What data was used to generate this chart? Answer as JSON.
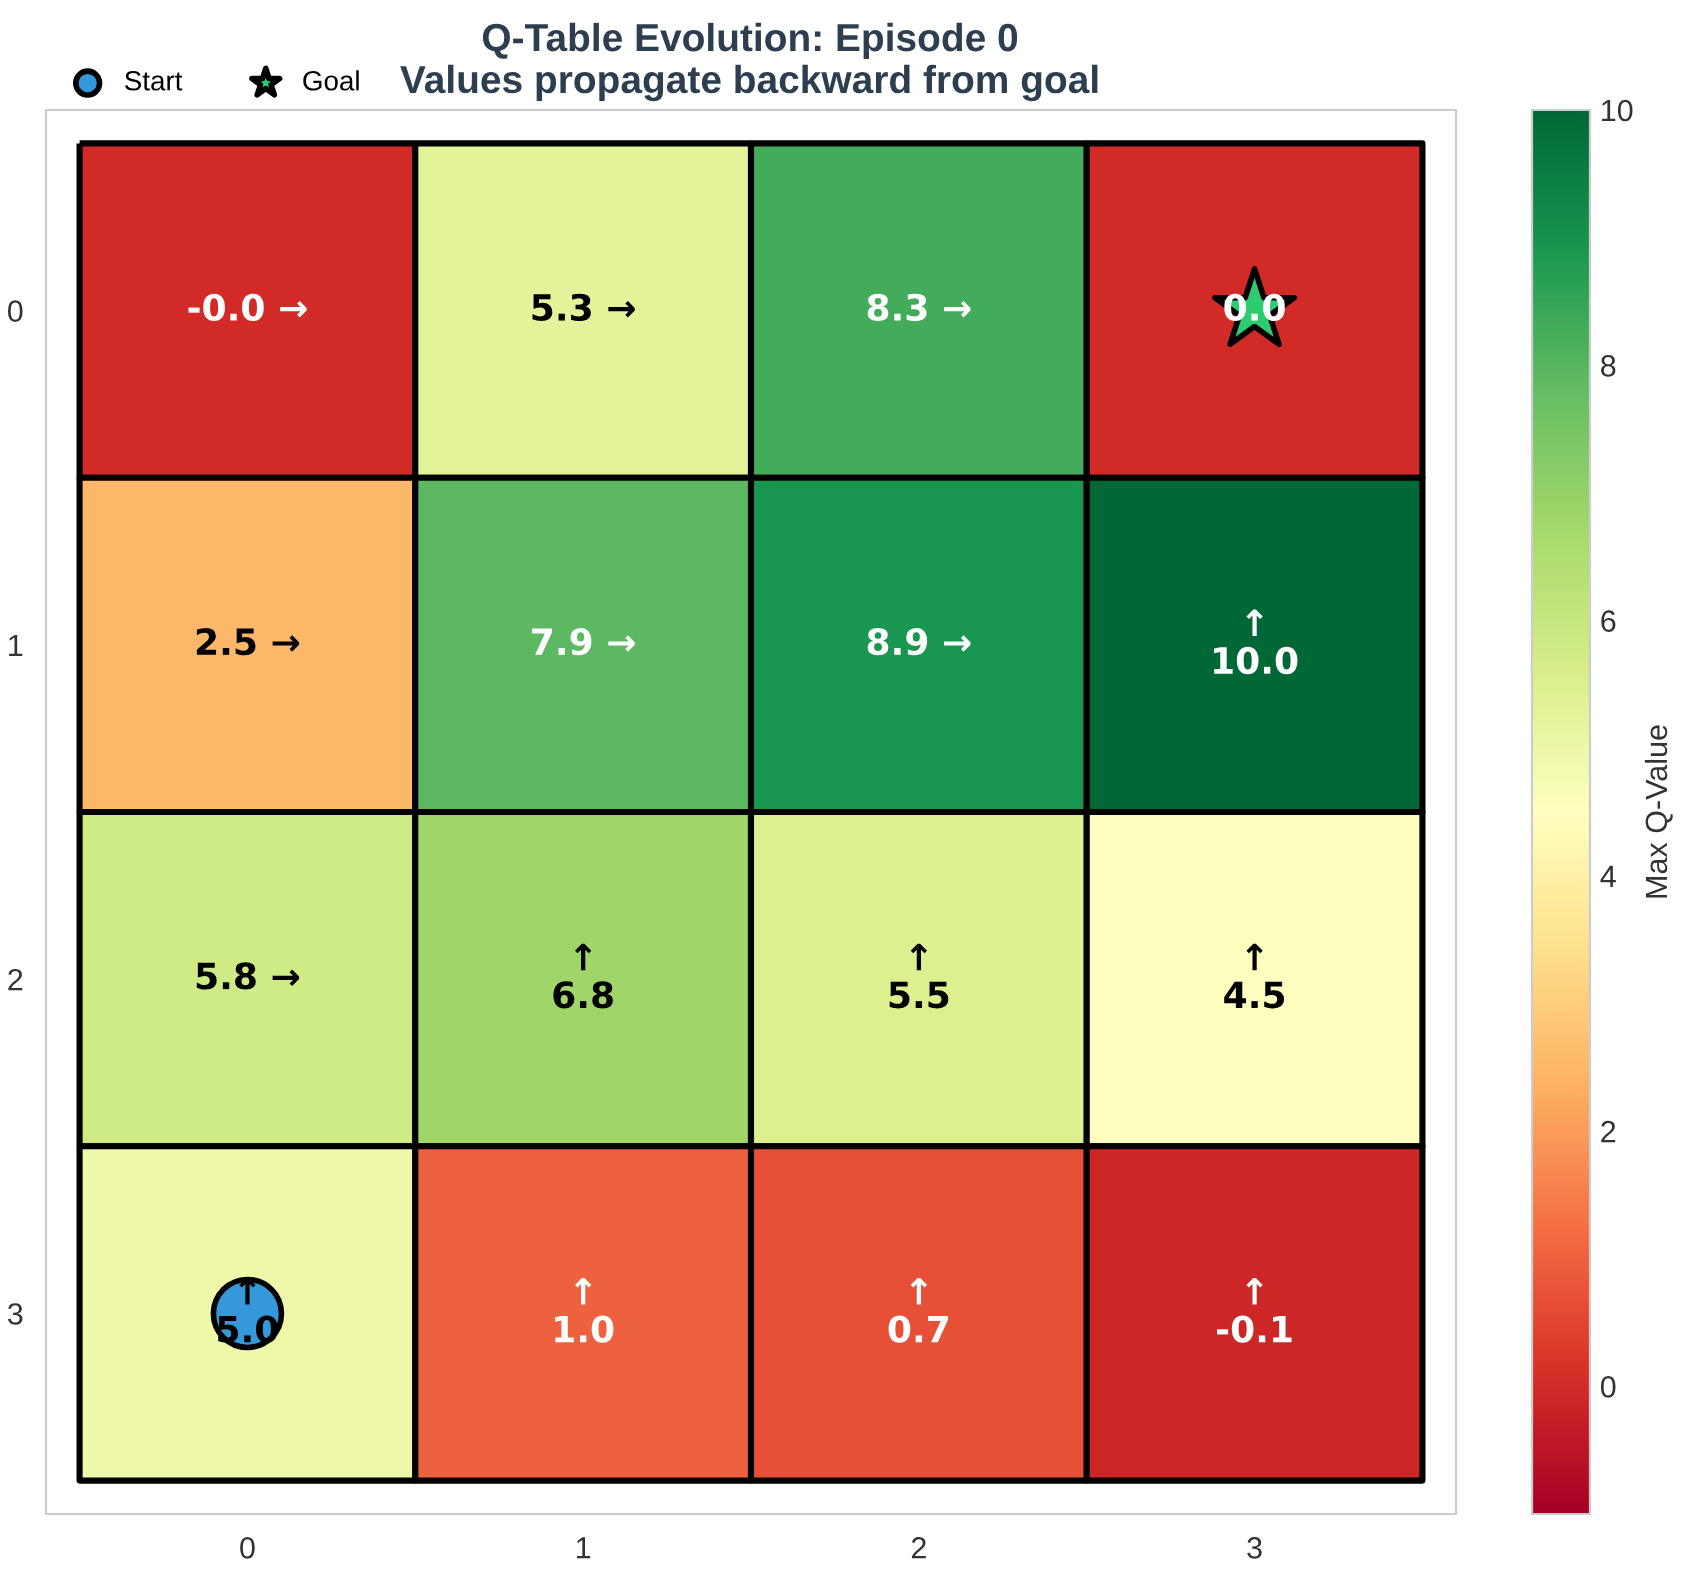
{
  "chart_data": {
    "type": "heatmap",
    "title": "Q-Table Evolution: Episode 0",
    "subtitle": "Values propagate backward from goal",
    "clabel": "Max Q-Value",
    "categories": [
      "0",
      "1",
      "2",
      "3"
    ],
    "y_categories": [
      "0",
      "1",
      "2",
      "3"
    ],
    "cells": [
      [
        -0.0,
        5.3,
        8.3,
        0.0
      ],
      [
        2.5,
        7.9,
        8.9,
        10.0
      ],
      [
        5.8,
        6.8,
        5.5,
        4.5
      ],
      [
        5.0,
        1.0,
        0.7,
        -0.1
      ]
    ],
    "cell_labels": [
      [
        "-0.0 →",
        "5.3 →",
        "8.3 →",
        "0.0"
      ],
      [
        "2.5 →",
        "7.9 →",
        "8.9 →",
        "↑\n10.0"
      ],
      [
        "5.8 →",
        "↑\n6.8",
        "↑\n5.5",
        "↑\n4.5"
      ],
      [
        "↑\n5.0",
        "↑\n1.0",
        "↑\n0.7",
        "↑\n-0.1"
      ]
    ],
    "clim": [
      -1,
      10
    ],
    "cticks": [
      0,
      2,
      4,
      6,
      8,
      10
    ],
    "series": [
      {
        "name": "Start",
        "type": "scatter",
        "marker": "circle",
        "color": "#3498db",
        "x": [
          "0"
        ],
        "values": [
          3
        ]
      },
      {
        "name": "Goal",
        "type": "scatter",
        "marker": "star",
        "color": "#2ecc71",
        "x": [
          "3"
        ],
        "values": [
          0
        ]
      }
    ],
    "legend": "top left",
    "grid": false
  }
}
